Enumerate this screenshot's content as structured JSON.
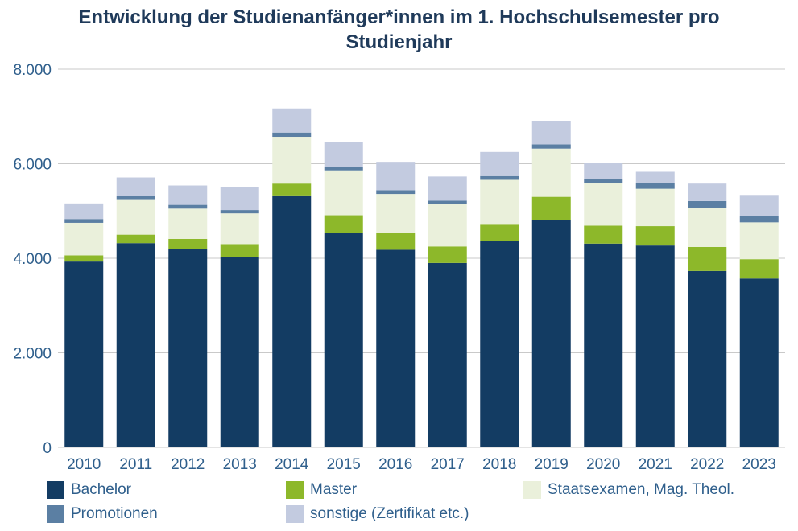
{
  "chart_data": {
    "type": "bar",
    "stacked": true,
    "title_lines": [
      "Entwicklung der Studienanfänger*innen im 1. Hochschulsemester pro",
      "Studienjahr"
    ],
    "xlabel": "",
    "ylabel": "",
    "ylim": [
      0,
      8000
    ],
    "y_ticks": [
      0,
      2000,
      4000,
      6000,
      8000
    ],
    "y_tick_labels": [
      "0",
      "2.000",
      "4.000",
      "6.000",
      "8.000"
    ],
    "grid": true,
    "legend_position": "bottom",
    "categories": [
      "2010",
      "2011",
      "2012",
      "2013",
      "2014",
      "2015",
      "2016",
      "2017",
      "2018",
      "2019",
      "2020",
      "2021",
      "2022",
      "2023"
    ],
    "series": [
      {
        "name": "Bachelor",
        "color": "#133c63",
        "values": [
          3930,
          4320,
          4190,
          4020,
          5330,
          4540,
          4180,
          3900,
          4360,
          4800,
          4310,
          4270,
          3730,
          3570
        ]
      },
      {
        "name": "Master",
        "color": "#8db82a",
        "values": [
          130,
          180,
          220,
          280,
          250,
          370,
          360,
          350,
          350,
          500,
          380,
          410,
          510,
          410
        ]
      },
      {
        "name": "Staatsexamen, Mag. Theol.",
        "color": "#eaf0db",
        "values": [
          690,
          750,
          640,
          650,
          990,
          950,
          820,
          900,
          950,
          1020,
          900,
          790,
          830,
          780
        ]
      },
      {
        "name": "Promotionen",
        "color": "#5b7fa3",
        "values": [
          80,
          70,
          80,
          70,
          90,
          70,
          80,
          70,
          80,
          90,
          90,
          120,
          140,
          140
        ]
      },
      {
        "name": "sonstige (Zertifikat etc.)",
        "color": "#c3cbe0",
        "values": [
          330,
          390,
          410,
          480,
          510,
          530,
          600,
          510,
          510,
          500,
          340,
          240,
          370,
          440
        ]
      }
    ]
  }
}
